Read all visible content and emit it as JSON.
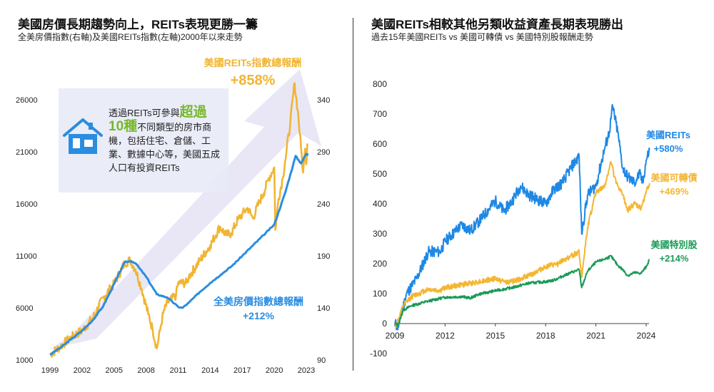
{
  "left": {
    "title": "美國房價長期趨勢向上，REITs表現更勝一籌",
    "subtitle": "全美房價指數(右軸)及美國REITs指數(左軸)2000年以來走勢",
    "callout": {
      "text_pre": "透過REITs可參與",
      "highlight1": "超過",
      "highlight2": "10種",
      "text_post": "不同類型的房市商機，包括住宅、倉儲、工業、數據中心等，美國五成人口有投資REITs"
    },
    "house_icon": "house-icon",
    "colors": {
      "reits": "#f0b534",
      "hpi": "#2a8de0",
      "arrow": "#e8e6f4",
      "callout_hl": "#76b82a",
      "house": "#2a8de0"
    }
  },
  "right": {
    "title": "美國REITs相較其他另類收益資產長期表現勝出",
    "subtitle": "過去15年美國REITs vs 美國可轉債 vs 美國特別股報酬走勢",
    "colors": {
      "reits": "#1e88e5",
      "convertible": "#f4b632",
      "preferred": "#1a9a57"
    }
  },
  "chart_data": [
    {
      "type": "line",
      "title": "美國房價長期趨勢向上，REITs表現更勝一籌",
      "x_ticks": [
        "1999",
        "2002",
        "2005",
        "2008",
        "2011",
        "2014",
        "2017",
        "2020",
        "2023"
      ],
      "xlim": [
        1999,
        2023.2
      ],
      "y_left": {
        "ticks": [
          "1000",
          "6000",
          "11000",
          "16000",
          "21000",
          "26000"
        ],
        "lim": [
          1000,
          26000
        ]
      },
      "y_right": {
        "ticks": [
          "90",
          "140",
          "190",
          "240",
          "290",
          "340"
        ],
        "lim": [
          90,
          340
        ]
      },
      "series": [
        {
          "name": "美國REITs指數總報酬",
          "axis": "left",
          "label": "美國REITs指數總報酬",
          "change_label": "+858%",
          "points": [
            [
              1999,
              1500
            ],
            [
              2000,
              2300
            ],
            [
              2001,
              3200
            ],
            [
              2002,
              3800
            ],
            [
              2003,
              5000
            ],
            [
              2004,
              7000
            ],
            [
              2005,
              8300
            ],
            [
              2006,
              10300
            ],
            [
              2006.5,
              10600
            ],
            [
              2007,
              9700
            ],
            [
              2007.6,
              7800
            ],
            [
              2008.2,
              5400
            ],
            [
              2008.6,
              4000
            ],
            [
              2009.0,
              2100
            ],
            [
              2009.3,
              3800
            ],
            [
              2009.6,
              5500
            ],
            [
              2010,
              6500
            ],
            [
              2010.8,
              7200
            ],
            [
              2011,
              8400
            ],
            [
              2011.8,
              8400
            ],
            [
              2012,
              9000
            ],
            [
              2013,
              10500
            ],
            [
              2014,
              12000
            ],
            [
              2014.9,
              13800
            ],
            [
              2015.5,
              13000
            ],
            [
              2016,
              13200
            ],
            [
              2016.6,
              14500
            ],
            [
              2017,
              15000
            ],
            [
              2017.5,
              15600
            ],
            [
              2018,
              14600
            ],
            [
              2018.6,
              16200
            ],
            [
              2019,
              17000
            ],
            [
              2019.5,
              18500
            ],
            [
              2020,
              19500
            ],
            [
              2020.1,
              13500
            ],
            [
              2020.4,
              16500
            ],
            [
              2020.8,
              18500
            ],
            [
              2021,
              20000
            ],
            [
              2021.5,
              23800
            ],
            [
              2021.9,
              27600
            ],
            [
              2022.2,
              25000
            ],
            [
              2022.5,
              21500
            ],
            [
              2022.7,
              19000
            ],
            [
              2022.9,
              21300
            ],
            [
              2023.0,
              19800
            ],
            [
              2023.1,
              21800
            ]
          ]
        },
        {
          "name": "全美房價指數總報酬",
          "axis": "right",
          "label": "全美房價指數總報酬",
          "change_label": "+212%",
          "points": [
            [
              1999,
              95
            ],
            [
              2000,
              102
            ],
            [
              2001,
              110
            ],
            [
              2002,
              118
            ],
            [
              2003,
              128
            ],
            [
              2004,
              142
            ],
            [
              2005,
              163
            ],
            [
              2006,
              184
            ],
            [
              2006.6,
              185
            ],
            [
              2007,
              183
            ],
            [
              2008,
              170
            ],
            [
              2009,
              153
            ],
            [
              2010,
              150
            ],
            [
              2011,
              141
            ],
            [
              2011.4,
              140
            ],
            [
              2012,
              145
            ],
            [
              2013,
              155
            ],
            [
              2014,
              164
            ],
            [
              2015,
              172
            ],
            [
              2016,
              180
            ],
            [
              2017,
              190
            ],
            [
              2018,
              200
            ],
            [
              2019,
              210
            ],
            [
              2020,
              220
            ],
            [
              2021,
              250
            ],
            [
              2022,
              286
            ],
            [
              2022.5,
              279
            ],
            [
              2023,
              288
            ],
            [
              2023.2,
              287
            ]
          ]
        }
      ]
    },
    {
      "type": "line",
      "title": "美國REITs相較其他另類收益資產長期表現勝出",
      "x_ticks": [
        "2009",
        "2012",
        "2015",
        "2018",
        "2021",
        "2024"
      ],
      "xlim": [
        2009,
        2024.2
      ],
      "ylim": [
        -100,
        800
      ],
      "y_ticks": [
        "-100",
        "0",
        "100",
        "200",
        "300",
        "400",
        "500",
        "600",
        "700",
        "800"
      ],
      "series": [
        {
          "name": "美國REITs",
          "label": "美國REITs",
          "change_label": "+580%",
          "points": [
            [
              2009,
              0
            ],
            [
              2009.2,
              -10
            ],
            [
              2009.7,
              100
            ],
            [
              2010.3,
              150
            ],
            [
              2011,
              240
            ],
            [
              2011.7,
              240
            ],
            [
              2012,
              275
            ],
            [
              2013,
              330
            ],
            [
              2013.5,
              310
            ],
            [
              2014,
              340
            ],
            [
              2015,
              410
            ],
            [
              2015.5,
              375
            ],
            [
              2016,
              410
            ],
            [
              2016.5,
              460
            ],
            [
              2017,
              430
            ],
            [
              2018,
              400
            ],
            [
              2018.5,
              450
            ],
            [
              2019,
              470
            ],
            [
              2019.5,
              520
            ],
            [
              2020,
              560
            ],
            [
              2020.15,
              300
            ],
            [
              2020.5,
              430
            ],
            [
              2021,
              460
            ],
            [
              2021.5,
              580
            ],
            [
              2021.8,
              640
            ],
            [
              2022,
              725
            ],
            [
              2022.3,
              640
            ],
            [
              2022.6,
              520
            ],
            [
              2022.9,
              490
            ],
            [
              2023.3,
              470
            ],
            [
              2023.6,
              500
            ],
            [
              2023.8,
              470
            ],
            [
              2024,
              545
            ],
            [
              2024.2,
              580
            ]
          ]
        },
        {
          "name": "美國可轉債",
          "label": "美國可轉債",
          "change_label": "+469%",
          "points": [
            [
              2009,
              0
            ],
            [
              2009.1,
              -5
            ],
            [
              2009.5,
              60
            ],
            [
              2010,
              90
            ],
            [
              2011,
              115
            ],
            [
              2011.7,
              110
            ],
            [
              2012,
              120
            ],
            [
              2013,
              130
            ],
            [
              2014,
              140
            ],
            [
              2015,
              150
            ],
            [
              2015.5,
              140
            ],
            [
              2016,
              140
            ],
            [
              2017,
              160
            ],
            [
              2018,
              190
            ],
            [
              2018.8,
              200
            ],
            [
              2019,
              210
            ],
            [
              2019.5,
              225
            ],
            [
              2020,
              240
            ],
            [
              2020.15,
              155
            ],
            [
              2020.5,
              320
            ],
            [
              2021,
              440
            ],
            [
              2021.5,
              455
            ],
            [
              2021.9,
              540
            ],
            [
              2022.2,
              470
            ],
            [
              2022.6,
              430
            ],
            [
              2022.9,
              380
            ],
            [
              2023.3,
              400
            ],
            [
              2023.7,
              385
            ],
            [
              2024,
              440
            ],
            [
              2024.2,
              469
            ]
          ]
        },
        {
          "name": "美國特別股",
          "label": "美國特別股",
          "change_label": "+214%",
          "points": [
            [
              2009,
              0
            ],
            [
              2009.2,
              -5
            ],
            [
              2009.5,
              45
            ],
            [
              2010,
              60
            ],
            [
              2011,
              75
            ],
            [
              2012,
              88
            ],
            [
              2013,
              90
            ],
            [
              2013.5,
              85
            ],
            [
              2014,
              98
            ],
            [
              2015,
              110
            ],
            [
              2016,
              120
            ],
            [
              2017,
              135
            ],
            [
              2018,
              140
            ],
            [
              2018.5,
              145
            ],
            [
              2019,
              158
            ],
            [
              2019.5,
              170
            ],
            [
              2020,
              180
            ],
            [
              2020.15,
              120
            ],
            [
              2020.5,
              175
            ],
            [
              2021,
              205
            ],
            [
              2021.5,
              215
            ],
            [
              2021.9,
              225
            ],
            [
              2022.3,
              195
            ],
            [
              2022.6,
              180
            ],
            [
              2022.9,
              160
            ],
            [
              2023.3,
              170
            ],
            [
              2023.7,
              168
            ],
            [
              2024,
              190
            ],
            [
              2024.2,
              214
            ]
          ]
        }
      ]
    }
  ]
}
